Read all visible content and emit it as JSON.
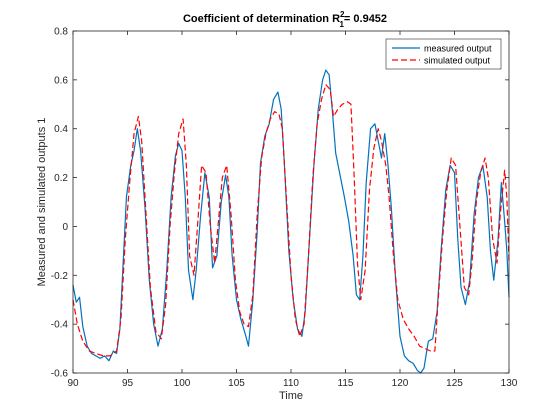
{
  "chart_data": {
    "type": "line",
    "title_main": "Coefficient of determination R",
    "title_sup": "2",
    "title_sub": "1",
    "title_value": "= 0.9452",
    "xlabel": "Time",
    "ylabel": "Measured and simulated outputs 1",
    "xlim": [
      90,
      130
    ],
    "ylim": [
      -0.6,
      0.8
    ],
    "xticks": [
      90,
      95,
      100,
      105,
      110,
      115,
      120,
      125,
      130
    ],
    "yticks": [
      -0.6,
      -0.4,
      -0.2,
      0,
      0.2,
      0.4,
      0.6,
      0.8
    ],
    "grid": false,
    "legend_position": "top-right",
    "series": [
      {
        "name": "measured output",
        "color": "#0072bd",
        "style": "solid",
        "points": [
          [
            90,
            -0.24
          ],
          [
            90.3,
            -0.31
          ],
          [
            90.6,
            -0.29
          ],
          [
            90.9,
            -0.41
          ],
          [
            91.3,
            -0.49
          ],
          [
            91.7,
            -0.52
          ],
          [
            92.1,
            -0.53
          ],
          [
            92.5,
            -0.54
          ],
          [
            92.9,
            -0.53
          ],
          [
            93.3,
            -0.55
          ],
          [
            93.7,
            -0.51
          ],
          [
            94.0,
            -0.52
          ],
          [
            94.3,
            -0.42
          ],
          [
            94.6,
            -0.15
          ],
          [
            94.9,
            0.12
          ],
          [
            95.3,
            0.25
          ],
          [
            95.6,
            0.31
          ],
          [
            95.9,
            0.4
          ],
          [
            96.2,
            0.31
          ],
          [
            96.6,
            0.08
          ],
          [
            97.0,
            -0.22
          ],
          [
            97.4,
            -0.4
          ],
          [
            97.8,
            -0.49
          ],
          [
            98.2,
            -0.42
          ],
          [
            98.6,
            -0.18
          ],
          [
            99.0,
            0.12
          ],
          [
            99.4,
            0.29
          ],
          [
            99.7,
            0.34
          ],
          [
            100.0,
            0.31
          ],
          [
            100.3,
            0.12
          ],
          [
            100.6,
            -0.18
          ],
          [
            101.0,
            -0.3
          ],
          [
            101.3,
            -0.18
          ],
          [
            101.7,
            0.04
          ],
          [
            102.1,
            0.22
          ],
          [
            102.5,
            0.12
          ],
          [
            102.8,
            -0.17
          ],
          [
            103.2,
            -0.12
          ],
          [
            103.6,
            0.1
          ],
          [
            104.0,
            0.21
          ],
          [
            104.3,
            0.12
          ],
          [
            104.6,
            -0.12
          ],
          [
            105.0,
            -0.3
          ],
          [
            105.4,
            -0.38
          ],
          [
            105.8,
            -0.44
          ],
          [
            106.1,
            -0.49
          ],
          [
            106.5,
            -0.3
          ],
          [
            106.9,
            -0.02
          ],
          [
            107.2,
            0.26
          ],
          [
            107.6,
            0.37
          ],
          [
            108.0,
            0.42
          ],
          [
            108.4,
            0.52
          ],
          [
            108.8,
            0.55
          ],
          [
            109.1,
            0.48
          ],
          [
            109.4,
            0.25
          ],
          [
            109.8,
            -0.1
          ],
          [
            110.2,
            -0.3
          ],
          [
            110.6,
            -0.42
          ],
          [
            111.0,
            -0.45
          ],
          [
            111.3,
            -0.35
          ],
          [
            111.7,
            -0.05
          ],
          [
            112.1,
            0.25
          ],
          [
            112.5,
            0.48
          ],
          [
            112.9,
            0.6
          ],
          [
            113.2,
            0.64
          ],
          [
            113.5,
            0.62
          ],
          [
            113.8,
            0.47
          ],
          [
            114.1,
            0.3
          ],
          [
            114.5,
            0.21
          ],
          [
            114.9,
            0.12
          ],
          [
            115.3,
            0.02
          ],
          [
            115.7,
            -0.12
          ],
          [
            116.0,
            -0.28
          ],
          [
            116.3,
            -0.3
          ],
          [
            116.6,
            -0.12
          ],
          [
            116.9,
            0.18
          ],
          [
            117.3,
            0.4
          ],
          [
            117.7,
            0.42
          ],
          [
            118.0,
            0.35
          ],
          [
            118.3,
            0.28
          ],
          [
            118.6,
            0.38
          ],
          [
            118.9,
            0.25
          ],
          [
            119.2,
            0.08
          ],
          [
            119.6,
            -0.22
          ],
          [
            120.0,
            -0.45
          ],
          [
            120.4,
            -0.53
          ],
          [
            120.8,
            -0.55
          ],
          [
            121.2,
            -0.56
          ],
          [
            121.6,
            -0.59
          ],
          [
            121.9,
            -0.6
          ],
          [
            122.2,
            -0.58
          ],
          [
            122.6,
            -0.47
          ],
          [
            123.0,
            -0.46
          ],
          [
            123.4,
            -0.35
          ],
          [
            123.8,
            -0.08
          ],
          [
            124.2,
            0.15
          ],
          [
            124.6,
            0.25
          ],
          [
            125.0,
            0.22
          ],
          [
            125.3,
            -0.05
          ],
          [
            125.6,
            -0.25
          ],
          [
            126.0,
            -0.32
          ],
          [
            126.4,
            -0.22
          ],
          [
            126.8,
            0.05
          ],
          [
            127.2,
            0.2
          ],
          [
            127.6,
            0.25
          ],
          [
            128.0,
            0.12
          ],
          [
            128.3,
            -0.1
          ],
          [
            128.6,
            -0.22
          ],
          [
            129.0,
            -0.05
          ],
          [
            129.3,
            0.18
          ],
          [
            129.6,
            0.02
          ],
          [
            129.8,
            -0.1
          ],
          [
            130.0,
            -0.29
          ]
        ]
      },
      {
        "name": "simulated output",
        "color": "#ff0000",
        "style": "dashed",
        "points": [
          [
            90,
            -0.3
          ],
          [
            90.4,
            -0.4
          ],
          [
            90.9,
            -0.47
          ],
          [
            91.5,
            -0.51
          ],
          [
            92.1,
            -0.52
          ],
          [
            92.8,
            -0.53
          ],
          [
            93.4,
            -0.53
          ],
          [
            94.0,
            -0.51
          ],
          [
            94.4,
            -0.38
          ],
          [
            94.8,
            -0.05
          ],
          [
            95.2,
            0.18
          ],
          [
            95.6,
            0.38
          ],
          [
            96.0,
            0.45
          ],
          [
            96.3,
            0.35
          ],
          [
            96.7,
            0.05
          ],
          [
            97.1,
            -0.25
          ],
          [
            97.6,
            -0.43
          ],
          [
            98.1,
            -0.46
          ],
          [
            98.5,
            -0.32
          ],
          [
            98.9,
            0.0
          ],
          [
            99.3,
            0.22
          ],
          [
            99.7,
            0.38
          ],
          [
            100.1,
            0.44
          ],
          [
            100.4,
            0.25
          ],
          [
            100.7,
            -0.12
          ],
          [
            101.1,
            -0.2
          ],
          [
            101.5,
            0.05
          ],
          [
            101.8,
            0.25
          ],
          [
            102.2,
            0.22
          ],
          [
            102.6,
            0.0
          ],
          [
            103.0,
            -0.15
          ],
          [
            103.3,
            0.0
          ],
          [
            103.7,
            0.2
          ],
          [
            104.1,
            0.25
          ],
          [
            104.5,
            0.05
          ],
          [
            104.9,
            -0.22
          ],
          [
            105.3,
            -0.35
          ],
          [
            105.7,
            -0.4
          ],
          [
            106.1,
            -0.41
          ],
          [
            106.5,
            -0.28
          ],
          [
            106.9,
            0.05
          ],
          [
            107.3,
            0.28
          ],
          [
            107.7,
            0.38
          ],
          [
            108.1,
            0.44
          ],
          [
            108.5,
            0.47
          ],
          [
            108.9,
            0.46
          ],
          [
            109.2,
            0.4
          ],
          [
            109.6,
            0.1
          ],
          [
            110.0,
            -0.2
          ],
          [
            110.4,
            -0.38
          ],
          [
            110.8,
            -0.45
          ],
          [
            111.2,
            -0.4
          ],
          [
            111.6,
            -0.12
          ],
          [
            112.0,
            0.2
          ],
          [
            112.4,
            0.42
          ],
          [
            112.8,
            0.52
          ],
          [
            113.2,
            0.58
          ],
          [
            113.6,
            0.56
          ],
          [
            113.9,
            0.45
          ],
          [
            114.3,
            0.48
          ],
          [
            114.7,
            0.5
          ],
          [
            115.2,
            0.51
          ],
          [
            115.5,
            0.5
          ],
          [
            115.8,
            0.2
          ],
          [
            116.1,
            -0.15
          ],
          [
            116.4,
            -0.3
          ],
          [
            116.8,
            -0.18
          ],
          [
            117.2,
            0.15
          ],
          [
            117.6,
            0.32
          ],
          [
            118.0,
            0.4
          ],
          [
            118.3,
            0.35
          ],
          [
            118.7,
            0.25
          ],
          [
            119.0,
            0.12
          ],
          [
            119.4,
            -0.12
          ],
          [
            119.8,
            -0.3
          ],
          [
            120.3,
            -0.38
          ],
          [
            120.8,
            -0.42
          ],
          [
            121.3,
            -0.45
          ],
          [
            121.8,
            -0.49
          ],
          [
            122.3,
            -0.5
          ],
          [
            122.8,
            -0.51
          ],
          [
            123.2,
            -0.51
          ],
          [
            123.5,
            -0.3
          ],
          [
            123.9,
            -0.05
          ],
          [
            124.3,
            0.15
          ],
          [
            124.7,
            0.28
          ],
          [
            125.1,
            0.25
          ],
          [
            125.5,
            0.0
          ],
          [
            125.9,
            -0.25
          ],
          [
            126.3,
            -0.28
          ],
          [
            126.6,
            -0.15
          ],
          [
            127.0,
            0.1
          ],
          [
            127.4,
            0.22
          ],
          [
            127.8,
            0.28
          ],
          [
            128.1,
            0.2
          ],
          [
            128.5,
            -0.05
          ],
          [
            128.9,
            -0.15
          ],
          [
            129.2,
            0.05
          ],
          [
            129.6,
            0.23
          ],
          [
            129.8,
            0.12
          ],
          [
            130.0,
            -0.14
          ]
        ]
      }
    ]
  }
}
